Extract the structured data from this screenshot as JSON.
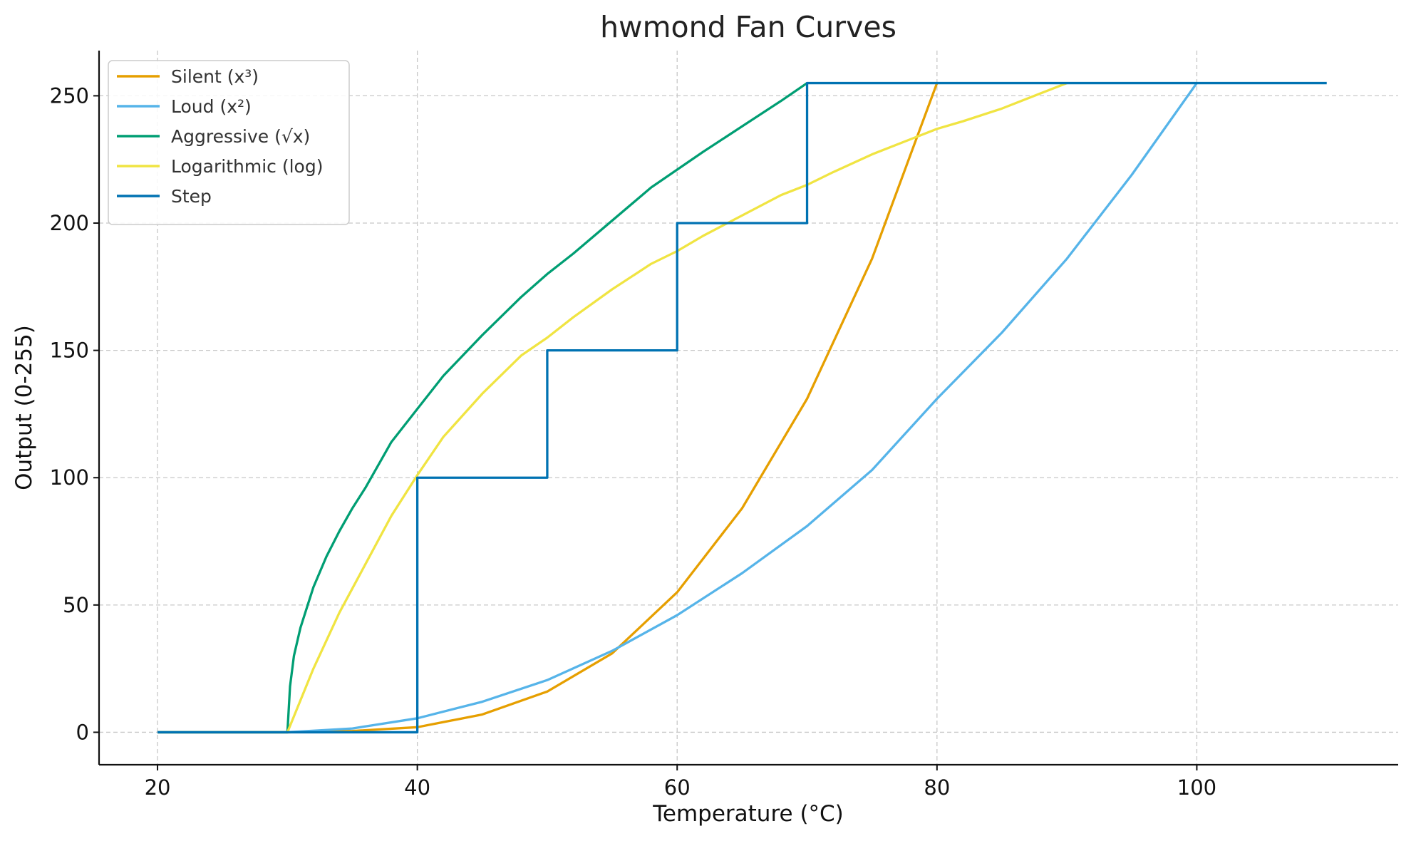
{
  "chart_data": {
    "type": "line",
    "title": "hwmond Fan Curves",
    "xlabel": "Temperature (°C)",
    "ylabel": "Output (0-255)",
    "xlim": [
      15.5,
      115.5
    ],
    "ylim": [
      -12.75,
      267.75
    ],
    "xticks": [
      20,
      40,
      60,
      80,
      100
    ],
    "yticks": [
      0,
      50,
      100,
      150,
      200,
      250
    ],
    "grid": true,
    "legend_position": "top-left",
    "series": [
      {
        "name": "Silent (x³)",
        "color": "#E69F00",
        "x": [
          20,
          30,
          35,
          40,
          45,
          50,
          55,
          60,
          65,
          70,
          75,
          80
        ],
        "y": [
          0,
          0,
          0.5,
          2,
          7,
          16,
          31,
          55,
          88,
          131,
          186,
          255
        ]
      },
      {
        "name": "Loud (x²)",
        "color": "#56B4E9",
        "x": [
          20,
          30,
          35,
          40,
          45,
          50,
          55,
          60,
          65,
          70,
          75,
          80,
          85,
          90,
          95,
          100
        ],
        "y": [
          0,
          0,
          1.5,
          5.5,
          12,
          20.5,
          32,
          46,
          62.5,
          81,
          103,
          131,
          157,
          186,
          219,
          255
        ]
      },
      {
        "name": "Aggressive (√x)",
        "color": "#009E73",
        "x": [
          20,
          30,
          30.2,
          30.5,
          31,
          31.5,
          32,
          33,
          34,
          35,
          36,
          38,
          40,
          42,
          45,
          48,
          50,
          52,
          55,
          58,
          60,
          62,
          65,
          68,
          70
        ],
        "y": [
          0,
          0,
          18,
          30,
          41,
          49,
          57,
          69,
          79,
          88,
          96,
          114,
          127,
          140,
          156,
          171,
          180,
          188,
          201,
          214,
          221,
          228,
          238,
          248,
          255
        ]
      },
      {
        "name": "Logarithmic (log)",
        "color": "#F0E442",
        "x": [
          20,
          30,
          32,
          34,
          36,
          38,
          40,
          42,
          45,
          48,
          50,
          52,
          55,
          58,
          60,
          62,
          65,
          68,
          70,
          72,
          75,
          78,
          80,
          82,
          85,
          88,
          90
        ],
        "y": [
          0,
          0,
          25,
          47,
          66,
          85,
          101,
          116,
          133,
          148,
          155,
          163,
          174,
          184,
          189,
          195,
          203,
          211,
          215,
          220,
          227,
          233,
          237,
          240,
          245,
          251,
          255
        ]
      },
      {
        "name": "Step",
        "color": "#0072B2",
        "step": true,
        "x": [
          20,
          40,
          40,
          50,
          50,
          60,
          60,
          70,
          70,
          110
        ],
        "y": [
          0,
          0,
          100,
          100,
          150,
          150,
          200,
          200,
          255,
          255
        ]
      }
    ]
  }
}
